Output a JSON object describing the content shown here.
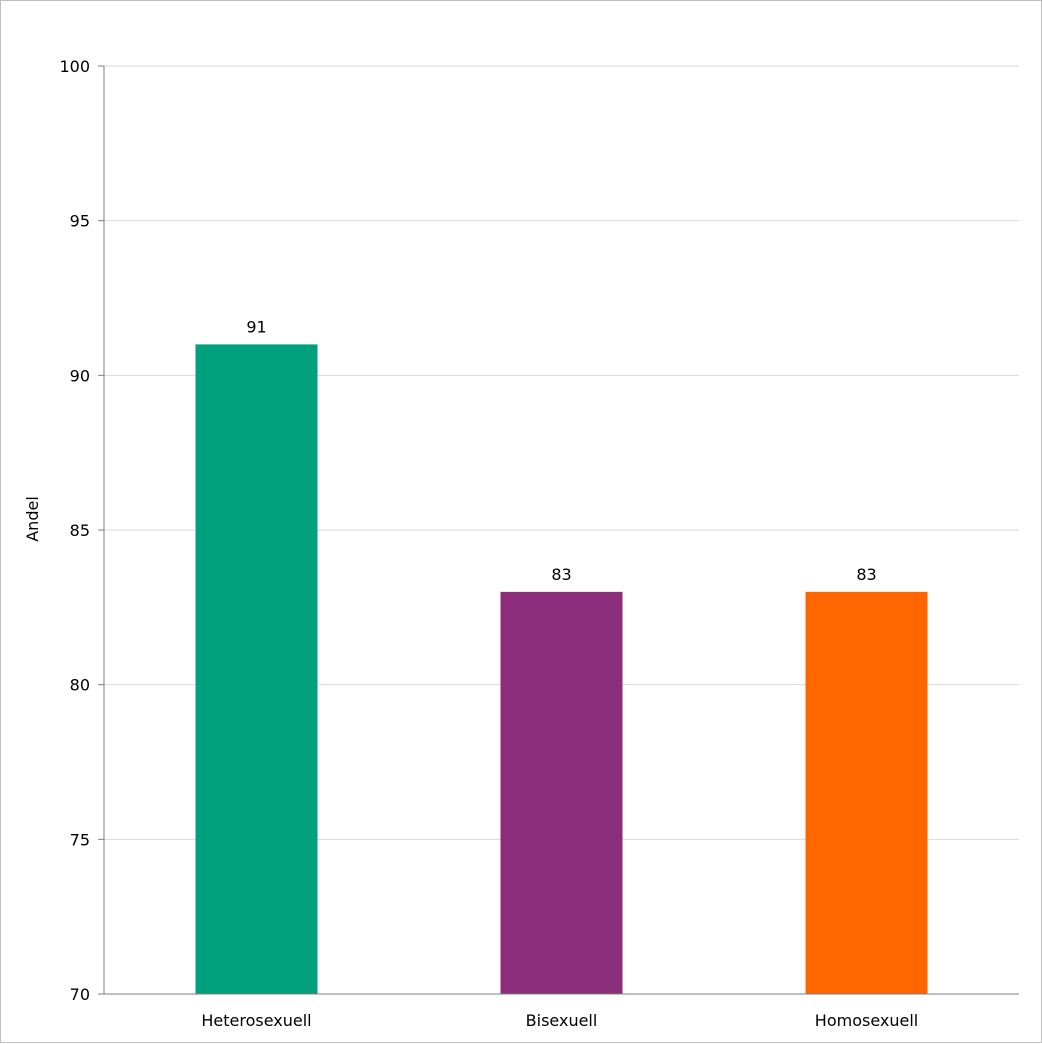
{
  "chart_data": {
    "type": "bar",
    "categories": [
      "Heterosexuell",
      "Bisexuell",
      "Homosexuell"
    ],
    "values": [
      91,
      83,
      83
    ],
    "colors": [
      "#00a07d",
      "#8b2d7b",
      "#ff6600"
    ],
    "data_labels": [
      "91",
      "83",
      "83"
    ],
    "title": "",
    "xlabel": "",
    "ylabel": "Andel",
    "ylim": [
      70,
      100
    ],
    "yticks": [
      70,
      75,
      80,
      85,
      90,
      95,
      100
    ],
    "ytick_labels": [
      "70",
      "75",
      "80",
      "85",
      "90",
      "95",
      "100"
    ],
    "grid": true,
    "gridline_color": "#d9d9d9"
  }
}
